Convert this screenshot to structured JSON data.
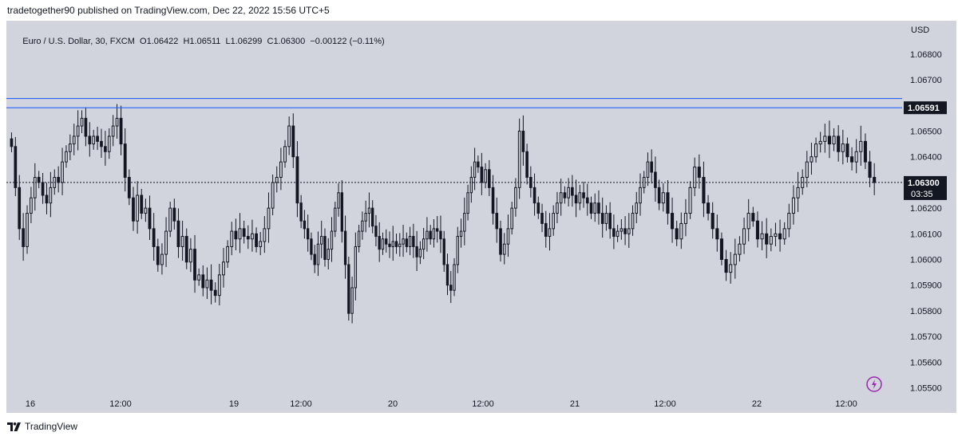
{
  "header": {
    "published": "tradetogether90 published on TradingView.com, Dec 22, 2022 15:56 UTC+5"
  },
  "footer": {
    "brand": "TradingView"
  },
  "colors": {
    "background": "#d1d4dc",
    "candle": "#131722",
    "level_line": "#2962ff",
    "label_bg": "#131722",
    "accent_icon": "#9c27b0"
  },
  "chart_data": {
    "type": "candlestick",
    "symbol": "Euro / U.S. Dollar",
    "interval": "30",
    "source": "FXCM",
    "legend": {
      "open": "O1.06422",
      "high": "H1.06511",
      "low": "L1.06299",
      "close": "C1.06300",
      "change": "−0.00122 (−0.11%)"
    },
    "currency": "USD",
    "ylim": [
      1.0548,
      1.0693
    ],
    "y_ticks": [
      "1.06800",
      "1.06700",
      "1.06500",
      "1.06400",
      "1.06200",
      "1.06100",
      "1.06000",
      "1.05900",
      "1.05800",
      "1.05700",
      "1.05600",
      "1.05500"
    ],
    "x_ticks": [
      "16",
      "12:00",
      "19",
      "12:00",
      "20",
      "12:00",
      "21",
      "12:00",
      "22",
      "12:00"
    ],
    "horizontal_levels": [
      1.06627,
      1.06591
    ],
    "current_price": 1.063,
    "current_price_label": "1.06300",
    "level_label": "1.06591",
    "countdown": "03:35",
    "session_closes": [
      [
        1.0644,
        1.0628,
        1.0612,
        1.0605,
        1.0618,
        1.0624,
        1.0632,
        1.063,
        1.0625,
        1.0622,
        1.0628,
        1.0632,
        1.063,
        1.0638,
        1.0642,
        1.0645,
        1.0648,
        1.0652,
        1.0655,
        1.0648,
        1.0645,
        1.0648,
        1.0646,
        1.0644,
        1.0642,
        1.0648,
        1.0652,
        1.0655
      ],
      [
        1.0645,
        1.0632,
        1.0624,
        1.0615,
        1.0625,
        1.0618,
        1.062,
        1.0612,
        1.0605,
        1.0598,
        1.0602,
        1.0611,
        1.062,
        1.0615,
        1.0605,
        1.0609,
        1.0599,
        1.0604,
        1.0592,
        1.0594,
        1.0589,
        1.0592,
        1.0588,
        1.0586,
        1.0594,
        1.0599,
        1.0605,
        1.0611,
        1.0608,
        1.0612,
        1.0609,
        1.0608,
        1.061,
        1.0605,
        1.0607,
        1.0612,
        1.062,
        1.063,
        1.0632,
        1.0638,
        1.0644,
        1.0652,
        1.064,
        1.0622
      ],
      [
        1.0615,
        1.0612,
        1.0608,
        1.0602,
        1.0598,
        1.0606,
        1.0609,
        1.06,
        1.0604,
        1.0611,
        1.062,
        1.0626,
        1.0611,
        1.0598,
        1.0579,
        1.0589,
        1.0605,
        1.0611,
        1.0615,
        1.0618,
        1.062,
        1.0613,
        1.0609,
        1.0604,
        1.0608,
        1.0606,
        1.0605,
        1.0607,
        1.0605,
        1.0606,
        1.0608,
        1.0605,
        1.0609,
        1.0605,
        1.0601,
        1.0604,
        1.0608,
        1.0611,
        1.0608,
        1.0612,
        1.0611,
        1.0608,
        1.0598,
        1.059,
        1.0588,
        1.0598,
        1.0609,
        1.0611,
        1.0618,
        1.0626,
        1.0632,
        1.0638,
        1.0636
      ],
      [
        1.063,
        1.0635,
        1.0628,
        1.0618,
        1.0612,
        1.0602,
        1.0606,
        1.0612,
        1.062,
        1.0628,
        1.065,
        1.0642,
        1.0632,
        1.0628,
        1.0622,
        1.0618,
        1.0614,
        1.0609,
        1.0612,
        1.0618,
        1.0622,
        1.0626,
        1.0624,
        1.0628,
        1.0625,
        1.0622,
        1.0626,
        1.0624,
        1.0622,
        1.0618,
        1.0622,
        1.0618,
        1.0614,
        1.0618,
        1.0612,
        1.0609,
        1.0611,
        1.0612,
        1.061,
        1.0612,
        1.0618,
        1.0622,
        1.0628,
        1.0632,
        1.0638,
        1.0634,
        1.0628,
        1.0622
      ],
      [
        1.0626,
        1.0618,
        1.0612,
        1.0608,
        1.0614,
        1.0618,
        1.0628,
        1.0636,
        1.0632,
        1.0622,
        1.0618,
        1.0612,
        1.0608,
        1.06,
        1.0595,
        1.0598,
        1.0602,
        1.0606,
        1.0612,
        1.0618,
        1.0615,
        1.0608,
        1.061,
        1.0606,
        1.0609,
        1.061,
        1.0608,
        1.0612,
        1.0618,
        1.0624,
        1.0628,
        1.0632,
        1.0638,
        1.064,
        1.0645,
        1.0646,
        1.0648,
        1.0645,
        1.0648,
        1.0642,
        1.0645,
        1.064,
        1.0638,
        1.0642,
        1.0646,
        1.0638,
        1.0632,
        1.063
      ]
    ]
  }
}
